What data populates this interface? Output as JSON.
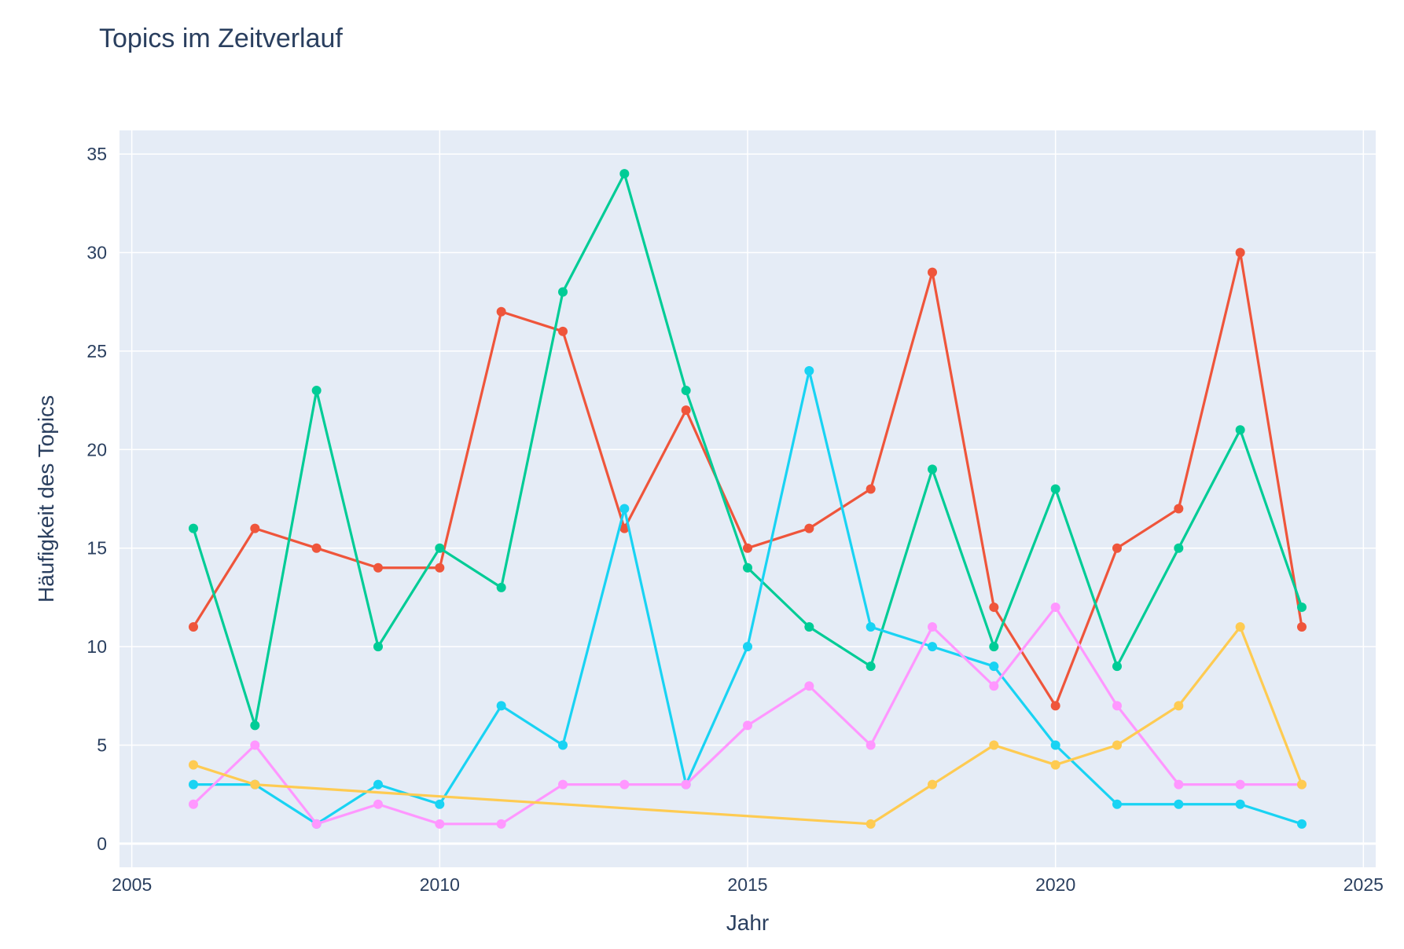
{
  "chart_data": {
    "type": "line",
    "title": "Topics im Zeitverlauf",
    "xlabel": "Jahr",
    "ylabel": "Häufigkeit des Topics",
    "xlim": [
      2004.8,
      2025.2
    ],
    "ylim": [
      -1.2,
      36.2
    ],
    "xticks": [
      2005,
      2010,
      2015,
      2020,
      2025
    ],
    "yticks": [
      0,
      5,
      10,
      15,
      20,
      25,
      30,
      35
    ],
    "grid": true,
    "background": "#e5ecf6",
    "series": [
      {
        "color": "#ef553b",
        "x": [
          2006,
          2007,
          2008,
          2009,
          2010,
          2011,
          2012,
          2013,
          2014,
          2015,
          2016,
          2017,
          2018,
          2019,
          2020,
          2021,
          2022,
          2023,
          2024
        ],
        "y": [
          11,
          16,
          15,
          14,
          14,
          27,
          26,
          16,
          22,
          15,
          16,
          18,
          29,
          12,
          7,
          15,
          17,
          30,
          11
        ]
      },
      {
        "color": "#00cc96",
        "x": [
          2006,
          2007,
          2008,
          2009,
          2010,
          2011,
          2012,
          2013,
          2014,
          2015,
          2016,
          2017,
          2018,
          2019,
          2020,
          2021,
          2022,
          2023,
          2024
        ],
        "y": [
          16,
          6,
          23,
          10,
          15,
          13,
          28,
          34,
          23,
          14,
          11,
          9,
          19,
          10,
          18,
          9,
          15,
          21,
          12
        ]
      },
      {
        "color": "#19d3f3",
        "x": [
          2006,
          2007,
          2008,
          2009,
          2010,
          2011,
          2012,
          2013,
          2014,
          2015,
          2016,
          2017,
          2018,
          2019,
          2020,
          2021,
          2022,
          2023,
          2024
        ],
        "y": [
          3,
          3,
          1,
          3,
          2,
          7,
          5,
          17,
          3,
          10,
          24,
          11,
          10,
          9,
          5,
          2,
          2,
          2,
          1
        ]
      },
      {
        "color": "#ff97ff",
        "x": [
          2006,
          2007,
          2008,
          2009,
          2010,
          2011,
          2012,
          2013,
          2014,
          2015,
          2016,
          2017,
          2018,
          2019,
          2020,
          2021,
          2022,
          2023,
          2024
        ],
        "y": [
          2,
          5,
          1,
          2,
          1,
          1,
          3,
          3,
          3,
          6,
          8,
          5,
          11,
          8,
          12,
          7,
          3,
          3,
          3
        ]
      },
      {
        "color": "#fecb52",
        "x": [
          2006,
          2007,
          2017,
          2018,
          2019,
          2020,
          2021,
          2022,
          2023,
          2024
        ],
        "y": [
          4,
          3,
          1,
          3,
          5,
          4,
          5,
          7,
          11,
          3
        ]
      }
    ]
  }
}
